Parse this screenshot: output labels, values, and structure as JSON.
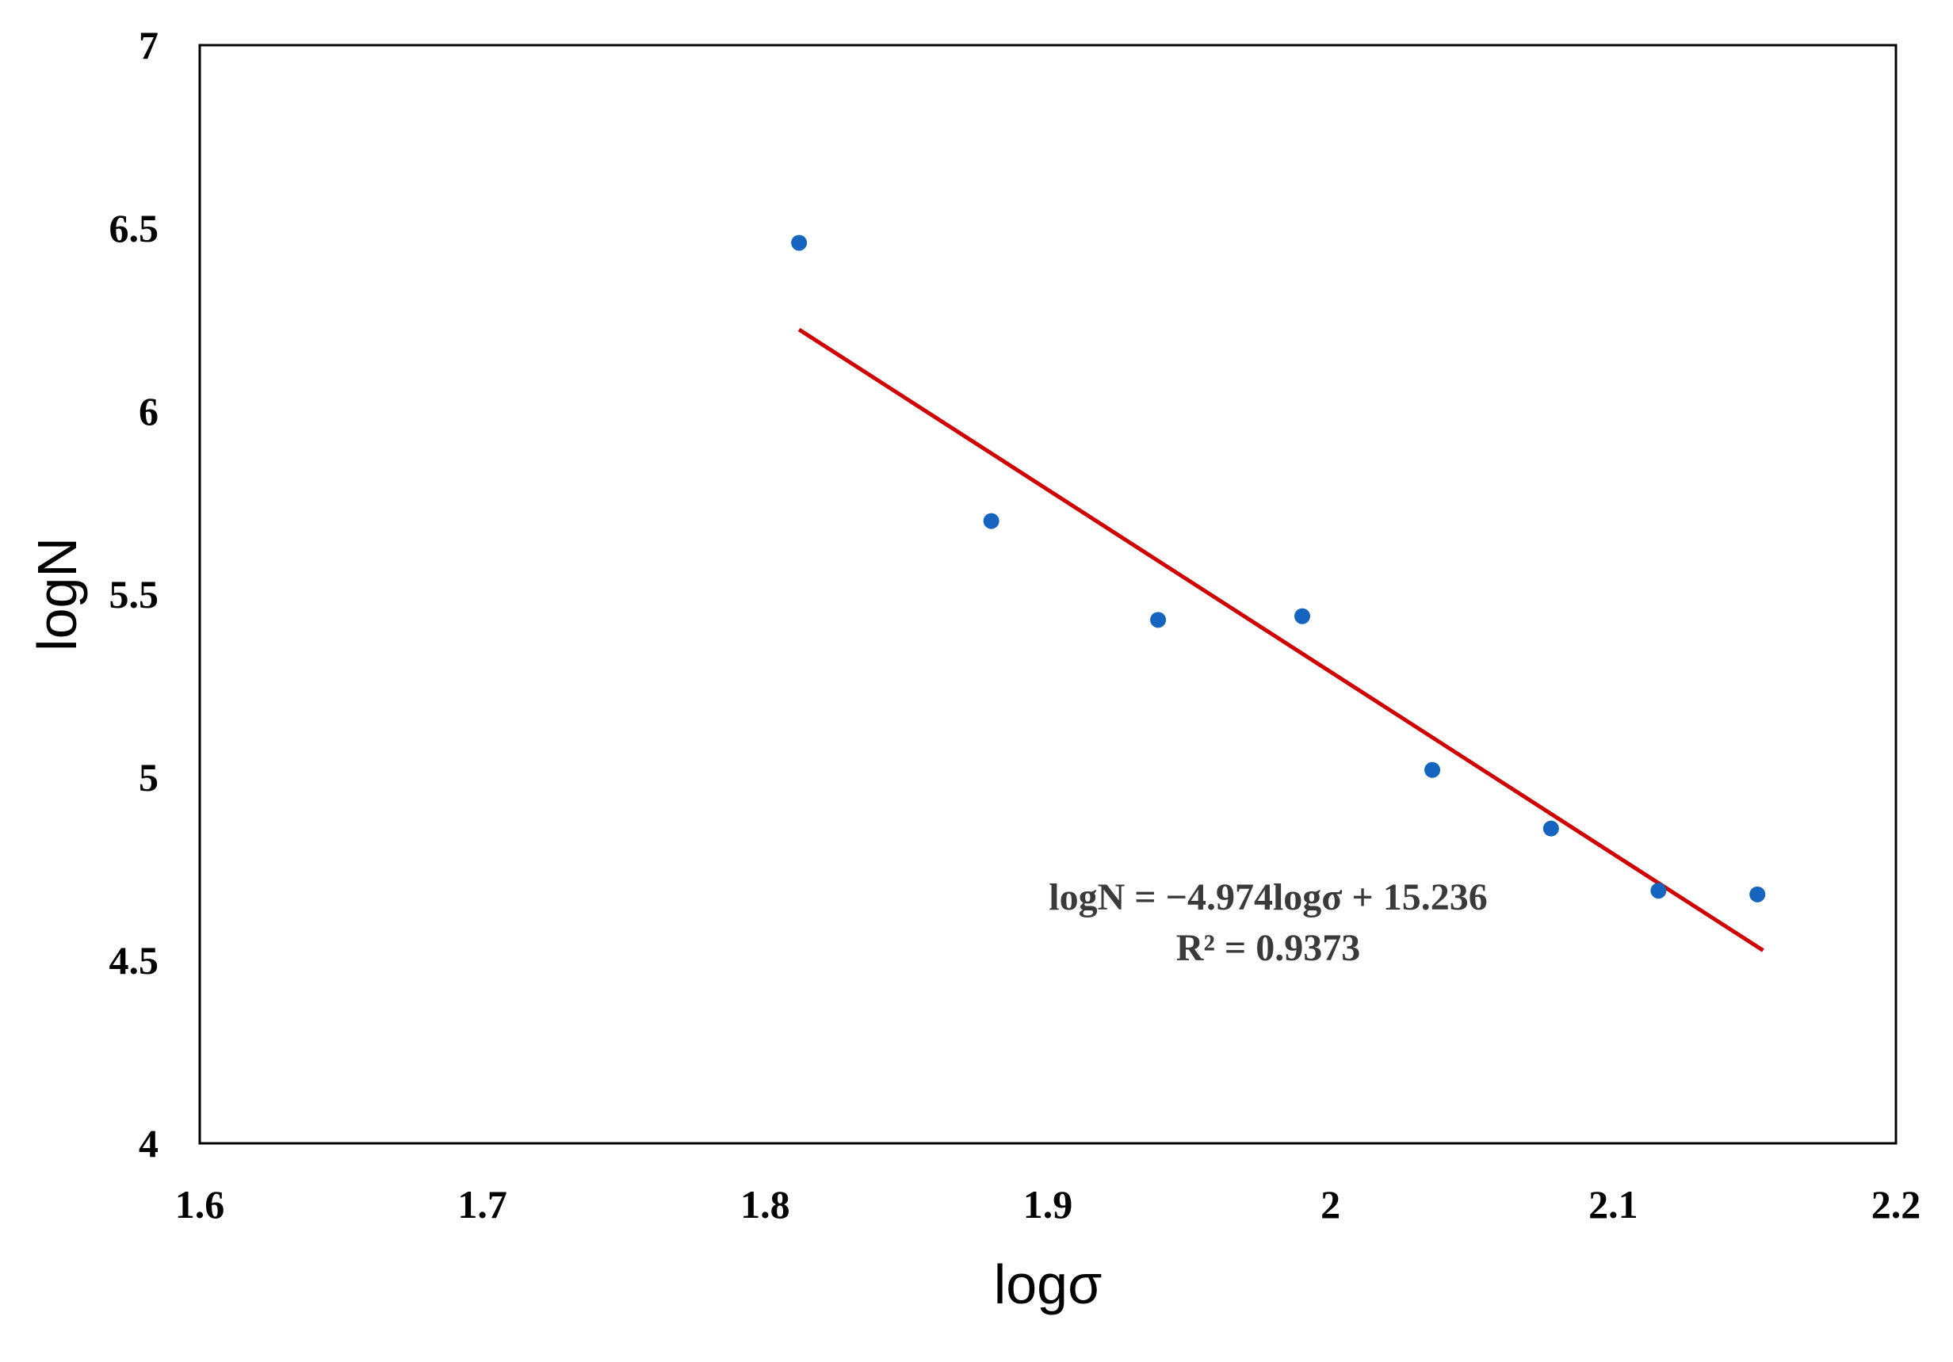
{
  "chart_data": {
    "type": "scatter",
    "xlabel": "logσ",
    "ylabel": "logN",
    "xlim": [
      1.6,
      2.2
    ],
    "ylim": [
      4,
      7
    ],
    "xticks": [
      "1.6",
      "1.7",
      "1.8",
      "1.9",
      "2",
      "2.1",
      "2.2"
    ],
    "yticks": [
      "4",
      "4.5",
      "5",
      "5.5",
      "6",
      "6.5",
      "7"
    ],
    "grid": false,
    "marker_color": "#1565C0",
    "trendline_color": "#D00000",
    "points": [
      {
        "x": 1.812,
        "y": 6.46
      },
      {
        "x": 1.88,
        "y": 5.7
      },
      {
        "x": 1.939,
        "y": 5.43
      },
      {
        "x": 1.99,
        "y": 5.44
      },
      {
        "x": 2.036,
        "y": 5.02
      },
      {
        "x": 2.078,
        "y": 4.86
      },
      {
        "x": 2.116,
        "y": 4.69
      },
      {
        "x": 2.151,
        "y": 4.68
      }
    ],
    "trendline": {
      "slope": -4.974,
      "intercept": 15.236,
      "x_range": [
        1.812,
        2.153
      ]
    },
    "annotations": {
      "equation": "logN = −4.974logσ + 15.236",
      "r_squared": "R² = 0.9373"
    }
  }
}
